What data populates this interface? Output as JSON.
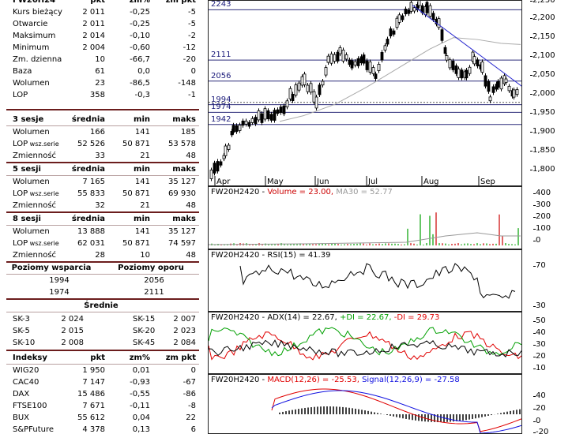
{
  "quote_table": {
    "header": {
      "name": "FW20H24",
      "pkt": "pkt",
      "zm_pct": "zm%",
      "zm_pkt": "zm pkt"
    },
    "rows": [
      {
        "label": "Kurs bieżący",
        "pkt": "2 011",
        "zm_pct": "-0,25",
        "zm_pkt": "-5"
      },
      {
        "label": "Otwarcie",
        "pkt": "2 011",
        "zm_pct": "-0,25",
        "zm_pkt": "-5"
      },
      {
        "label": "Maksimum",
        "pkt": "2 014",
        "zm_pct": "-0,10",
        "zm_pkt": "-2"
      },
      {
        "label": "Minimum",
        "pkt": "2 004",
        "zm_pct": "-0,60",
        "zm_pkt": "-12"
      },
      {
        "label": "Zm. dzienna",
        "pkt": "10",
        "zm_pct": "-66,7",
        "zm_pkt": "-20"
      },
      {
        "label": "Baza",
        "pkt": "61",
        "zm_pct": "0,0",
        "zm_pkt": "0"
      },
      {
        "label": "Wolumen",
        "pkt": "23",
        "zm_pct": "-86,5",
        "zm_pkt": "-148"
      },
      {
        "label": "LOP",
        "pkt": "358",
        "zm_pct": "-0,3",
        "zm_pkt": "-1"
      }
    ]
  },
  "sessions": [
    {
      "title": "3 sesje",
      "h1": "średnia",
      "h2": "min",
      "h3": "maks",
      "rows": [
        {
          "label": "Wolumen",
          "note": "",
          "a": "166",
          "b": "141",
          "c": "185"
        },
        {
          "label": "LOP",
          "note": "wsz.serie",
          "a": "52 526",
          "b": "50 871",
          "c": "53 578"
        },
        {
          "label": "Zmienność",
          "note": "",
          "a": "33",
          "b": "21",
          "c": "48"
        }
      ]
    },
    {
      "title": "5 sesji",
      "h1": "średnia",
      "h2": "min",
      "h3": "maks",
      "rows": [
        {
          "label": "Wolumen",
          "note": "",
          "a": "7 165",
          "b": "141",
          "c": "35 127"
        },
        {
          "label": "LOP",
          "note": "wsz.serie",
          "a": "55 833",
          "b": "50 871",
          "c": "69 930"
        },
        {
          "label": "Zmienność",
          "note": "",
          "a": "32",
          "b": "21",
          "c": "48"
        }
      ]
    },
    {
      "title": "8 sesji",
      "h1": "średnia",
      "h2": "min",
      "h3": "maks",
      "rows": [
        {
          "label": "Wolumen",
          "note": "",
          "a": "13 888",
          "b": "141",
          "c": "35 127"
        },
        {
          "label": "LOP",
          "note": "wsz.serie",
          "a": "62 031",
          "b": "50 871",
          "c": "74 597"
        },
        {
          "label": "Zmienność",
          "note": "",
          "a": "28",
          "b": "10",
          "c": "48"
        }
      ]
    }
  ],
  "levels": {
    "support_title": "Poziomy wsparcia",
    "resistance_title": "Poziomy oporu",
    "support": [
      "1994",
      "1974"
    ],
    "resistance": [
      "2056",
      "2111"
    ]
  },
  "averages": {
    "title": "Średnie",
    "rows": [
      {
        "l1": "SK-3",
        "v1": "2 024",
        "l2": "SK-15",
        "v2": "2 007"
      },
      {
        "l1": "SK-5",
        "v1": "2 015",
        "l2": "SK-20",
        "v2": "2 023"
      },
      {
        "l1": "SK-10",
        "v1": "2 008",
        "l2": "SK-45",
        "v2": "2 084"
      }
    ]
  },
  "indices": {
    "header": {
      "name": "Indeksy",
      "pkt": "pkt",
      "zm_pct": "zm%",
      "zm_pkt": "zm pkt"
    },
    "rows": [
      {
        "label": "WIG20",
        "pkt": "1 950",
        "zm_pct": "0,01",
        "zm_pkt": "0"
      },
      {
        "label": "CAC40",
        "pkt": "7 147",
        "zm_pct": "-0,93",
        "zm_pkt": "-67"
      },
      {
        "label": "DAX",
        "pkt": "15 486",
        "zm_pct": "-0,55",
        "zm_pkt": "-86"
      },
      {
        "label": "FTSE100",
        "pkt": "7 671",
        "zm_pct": "-0,11",
        "zm_pkt": "-8"
      },
      {
        "label": "BUX",
        "pkt": "55 612",
        "zm_pct": "0,04",
        "zm_pkt": "22"
      },
      {
        "label": "S&PFuture",
        "pkt": "4 378",
        "zm_pct": "0,13",
        "zm_pkt": "6"
      }
    ]
  },
  "price_chart": {
    "hlines": [
      "2243",
      "2111",
      "2056",
      "1994",
      "1974",
      "1942"
    ],
    "months": [
      "Apr",
      "May",
      "Jun",
      "Jul",
      "Aug",
      "Sep"
    ],
    "yticks": [
      "2,250",
      "2,200",
      "2,150",
      "2,100",
      "2,050",
      "2,000",
      "1,950",
      "1,900",
      "1,850",
      "1,800"
    ]
  },
  "volume_chart": {
    "ticker": "FW20H2420",
    "label1": "Volume = 23.00,",
    "label2": "MA30 = 52.77",
    "yticks": [
      "400",
      "300",
      "200",
      "100",
      "0"
    ],
    "colors": {
      "volume": "#cc0000",
      "ma": "#999999"
    }
  },
  "rsi_chart": {
    "ticker": "FW20H2420",
    "label": "RSI(15) = 41.39",
    "yticks": [
      "70",
      "30"
    ]
  },
  "adx_chart": {
    "ticker": "FW20H2420",
    "adx": "ADX(14) = 22.67,",
    "pdi": "+DI = 22.67,",
    "mdi": "-DI = 29.73",
    "yticks": [
      "50",
      "40",
      "30",
      "20",
      "10"
    ],
    "colors": {
      "pdi": "#00a000",
      "mdi": "#e00000"
    }
  },
  "macd_chart": {
    "ticker": "FW20H2420",
    "macd": "MACD(12,26) = -25.53,",
    "signal": "Signal(12,26,9) = -27.58",
    "yticks": [
      "40",
      "20",
      "0",
      "-20"
    ],
    "colors": {
      "macd": "#e00000",
      "signal": "#1010e0"
    }
  }
}
